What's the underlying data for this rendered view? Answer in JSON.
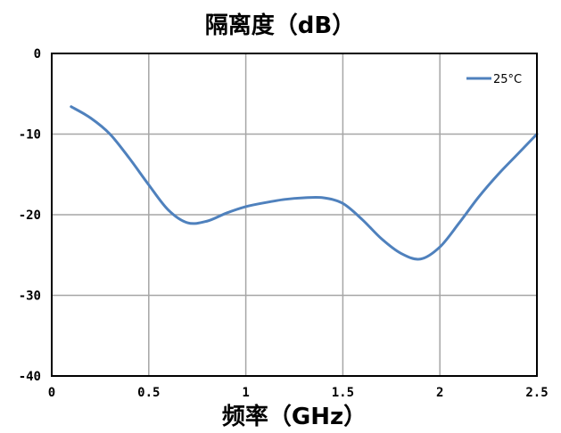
{
  "chart_data": {
    "type": "line",
    "title": "隔离度（dB）",
    "xlabel": "频率（GHz）",
    "ylabel": "",
    "xlim": [
      0,
      2.5
    ],
    "ylim": [
      -40,
      0
    ],
    "x_ticks": [
      "0",
      "0.5",
      "1",
      "1.5",
      "2",
      "2.5"
    ],
    "y_ticks": [
      "0",
      "-10",
      "-20",
      "-30",
      "-40"
    ],
    "grid": true,
    "legend_position": "top-right",
    "series": [
      {
        "name": "25°C",
        "color": "#4f81bd",
        "x": [
          0.1,
          0.2,
          0.3,
          0.4,
          0.5,
          0.6,
          0.7,
          0.8,
          0.9,
          1.0,
          1.1,
          1.2,
          1.3,
          1.4,
          1.5,
          1.6,
          1.7,
          1.8,
          1.9,
          2.0,
          2.1,
          2.2,
          2.3,
          2.4,
          2.5
        ],
        "y": [
          -6.6,
          -8.0,
          -10.0,
          -13.0,
          -16.3,
          -19.4,
          -21.0,
          -20.8,
          -19.8,
          -19.0,
          -18.5,
          -18.1,
          -17.9,
          -17.9,
          -18.6,
          -20.6,
          -23.0,
          -24.8,
          -25.5,
          -24.0,
          -21.0,
          -17.8,
          -15.0,
          -12.5,
          -10.0
        ]
      }
    ]
  }
}
